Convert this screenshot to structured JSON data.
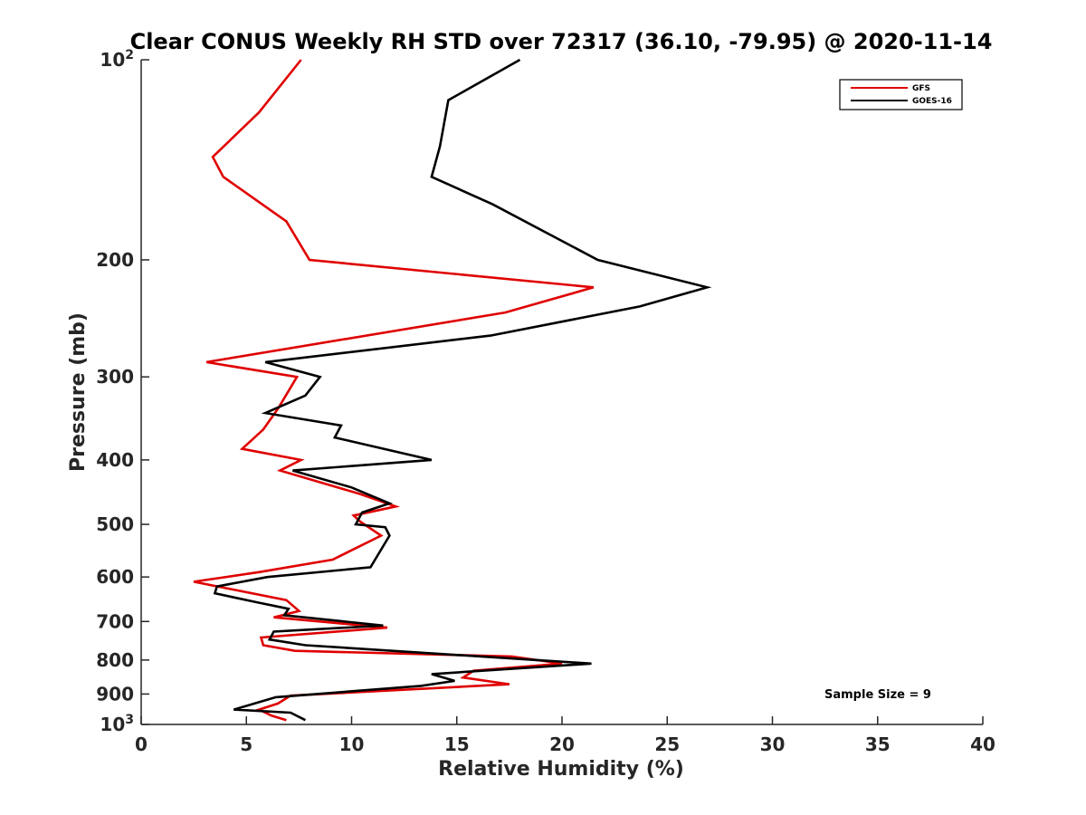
{
  "chart_data": {
    "type": "line",
    "title": "Clear CONUS Weekly RH STD over 72317 (36.10, -79.95) @ 2020-11-14",
    "xlabel": "Relative Humidity (%)",
    "ylabel": "Pressure (mb)",
    "xlim": [
      0,
      40
    ],
    "ylim": [
      100,
      1000
    ],
    "yscale": "log",
    "y_reversed": true,
    "grid": false,
    "legend_position": "top-right",
    "x_ticks": [
      "0",
      "5",
      "10",
      "15",
      "20",
      "25",
      "30",
      "35",
      "40"
    ],
    "y_ticks": [
      {
        "value": 100,
        "base": "10",
        "exp": "2"
      },
      {
        "value": 200,
        "label": "200"
      },
      {
        "value": 300,
        "label": "300"
      },
      {
        "value": 400,
        "label": "400"
      },
      {
        "value": 500,
        "label": "500"
      },
      {
        "value": 600,
        "label": "600"
      },
      {
        "value": 700,
        "label": "700"
      },
      {
        "value": 800,
        "label": "800"
      },
      {
        "value": 900,
        "label": "900"
      },
      {
        "value": 1000,
        "base": "10",
        "exp": "3"
      }
    ],
    "annotation": "Sample Size = 9",
    "series": [
      {
        "name": "GFS",
        "color": "#e00000",
        "x": [
          7.6,
          5.6,
          3.4,
          3.9,
          6.9,
          8.0,
          21.5,
          17.3,
          3.1,
          7.4,
          7.0,
          6.5,
          5.8,
          4.8,
          7.6,
          6.6,
          10.4,
          12.1,
          10.1,
          10.4,
          11.4,
          9.1,
          5.6,
          2.5,
          6.9,
          7.5,
          6.3,
          11.7,
          5.7,
          5.8,
          7.3,
          17.6,
          20.0,
          15.8,
          15.3,
          17.5,
          7.1,
          6.5,
          5.6,
          6.2,
          6.9
        ],
        "y": [
          100,
          120,
          140,
          150,
          175,
          200,
          220,
          240,
          285,
          300,
          315,
          335,
          360,
          385,
          400,
          415,
          450,
          470,
          485,
          495,
          520,
          565,
          590,
          610,
          650,
          675,
          690,
          715,
          740,
          760,
          775,
          790,
          810,
          830,
          850,
          870,
          905,
          930,
          950,
          970,
          985
        ]
      },
      {
        "name": "GOES-16",
        "color": "#000000",
        "x": [
          18.0,
          14.6,
          14.2,
          13.8,
          16.7,
          21.7,
          26.9,
          23.7,
          16.6,
          5.9,
          8.5,
          7.8,
          5.9,
          9.5,
          9.2,
          13.8,
          7.2,
          10.0,
          11.8,
          10.5,
          10.2,
          11.6,
          11.8,
          10.9,
          6.0,
          3.6,
          3.5,
          5.5,
          7.0,
          6.8,
          11.5,
          6.3,
          6.1,
          7.8,
          21.4,
          13.8,
          14.9,
          13.3,
          6.4,
          4.4,
          7.1,
          7.8
        ],
        "y": [
          100,
          115,
          135,
          150,
          165,
          200,
          220,
          235,
          260,
          285,
          300,
          320,
          340,
          355,
          370,
          400,
          415,
          440,
          465,
          480,
          500,
          505,
          520,
          580,
          600,
          620,
          635,
          655,
          670,
          685,
          710,
          725,
          745,
          760,
          810,
          840,
          860,
          875,
          910,
          950,
          960,
          985
        ]
      }
    ]
  }
}
